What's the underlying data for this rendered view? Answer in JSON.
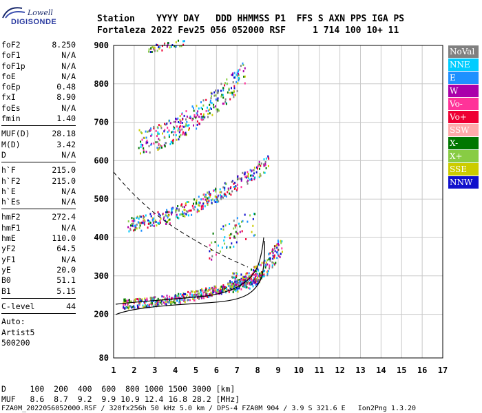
{
  "logo": {
    "line1": "Lowell",
    "line2": "DIGISONDE"
  },
  "header": {
    "line1": "Station    YYYY DAY   DDD HHMMSS P1  FFS S AXN PPS IGA PS",
    "line2": "Fortaleza 2022 Fev25 056 052000 RSF     1 714 100 10+ 11"
  },
  "params_group1": [
    {
      "name": "foF2",
      "value": "8.250"
    },
    {
      "name": "foF1",
      "value": "N/A"
    },
    {
      "name": "foF1p",
      "value": "N/A"
    },
    {
      "name": "foE",
      "value": "N/A"
    },
    {
      "name": "foEp",
      "value": "0.48"
    },
    {
      "name": "fxI",
      "value": "8.90"
    },
    {
      "name": "foEs",
      "value": "N/A"
    },
    {
      "name": "fmin",
      "value": "1.40"
    }
  ],
  "params_group2": [
    {
      "name": "MUF(D)",
      "value": "28.18"
    },
    {
      "name": "M(D)",
      "value": "3.42"
    },
    {
      "name": "D",
      "value": "N/A"
    }
  ],
  "params_group3": [
    {
      "name": "h`F",
      "value": "215.0"
    },
    {
      "name": "h`F2",
      "value": "215.0"
    },
    {
      "name": "h`E",
      "value": "N/A"
    },
    {
      "name": "h`Es",
      "value": "N/A"
    }
  ],
  "params_group4": [
    {
      "name": "hmF2",
      "value": "272.4"
    },
    {
      "name": "hmF1",
      "value": "N/A"
    },
    {
      "name": "hmE",
      "value": "110.0"
    },
    {
      "name": "yF2",
      "value": "64.5"
    },
    {
      "name": "yF1",
      "value": "N/A"
    },
    {
      "name": "yE",
      "value": "20.0"
    },
    {
      "name": "B0",
      "value": "51.1"
    },
    {
      "name": "B1",
      "value": "5.15"
    }
  ],
  "params_group5": [
    {
      "name": "C-level",
      "value": "44"
    }
  ],
  "auto": {
    "line1": "Auto:",
    "line2": "Artist5",
    "line3": "500200"
  },
  "legend": [
    {
      "label": "NoVal",
      "color": "#808080"
    },
    {
      "label": "NNE",
      "color": "#00ccff"
    },
    {
      "label": "E",
      "color": "#1e90ff"
    },
    {
      "label": "W",
      "color": "#aa00aa"
    },
    {
      "label": "Vo-",
      "color": "#ff3399"
    },
    {
      "label": "Vo+",
      "color": "#ee0033"
    },
    {
      "label": "SSW",
      "color": "#ffaaaa"
    },
    {
      "label": "X-",
      "color": "#007700"
    },
    {
      "label": "X+",
      "color": "#88cc44"
    },
    {
      "label": "SSE",
      "color": "#cccc00"
    },
    {
      "label": "NNW",
      "color": "#1010cc"
    }
  ],
  "axes": {
    "x_ticks": [
      "1",
      "2",
      "3",
      "4",
      "5",
      "6",
      "7",
      "8",
      "9",
      "10",
      "11",
      "12",
      "13",
      "14",
      "15",
      "16",
      "17"
    ],
    "y_ticks": [
      "900",
      "800",
      "700",
      "600",
      "500",
      "400",
      "300",
      "200",
      "80"
    ]
  },
  "bottom": {
    "line1": "D     100  200  400  600  800 1000 1500 3000 [km]",
    "line2": "MUF   8.6  8.7  9.2  9.9 10.9 12.4 16.8 28.2 [MHz]",
    "line3": "FZA0M_2022056052000.RSF / 320fx256h 50 kHz 5.0 km / DPS-4 FZA0M 904 / 3.9 S 321.6 E   Ion2Png 1.3.20"
  }
}
